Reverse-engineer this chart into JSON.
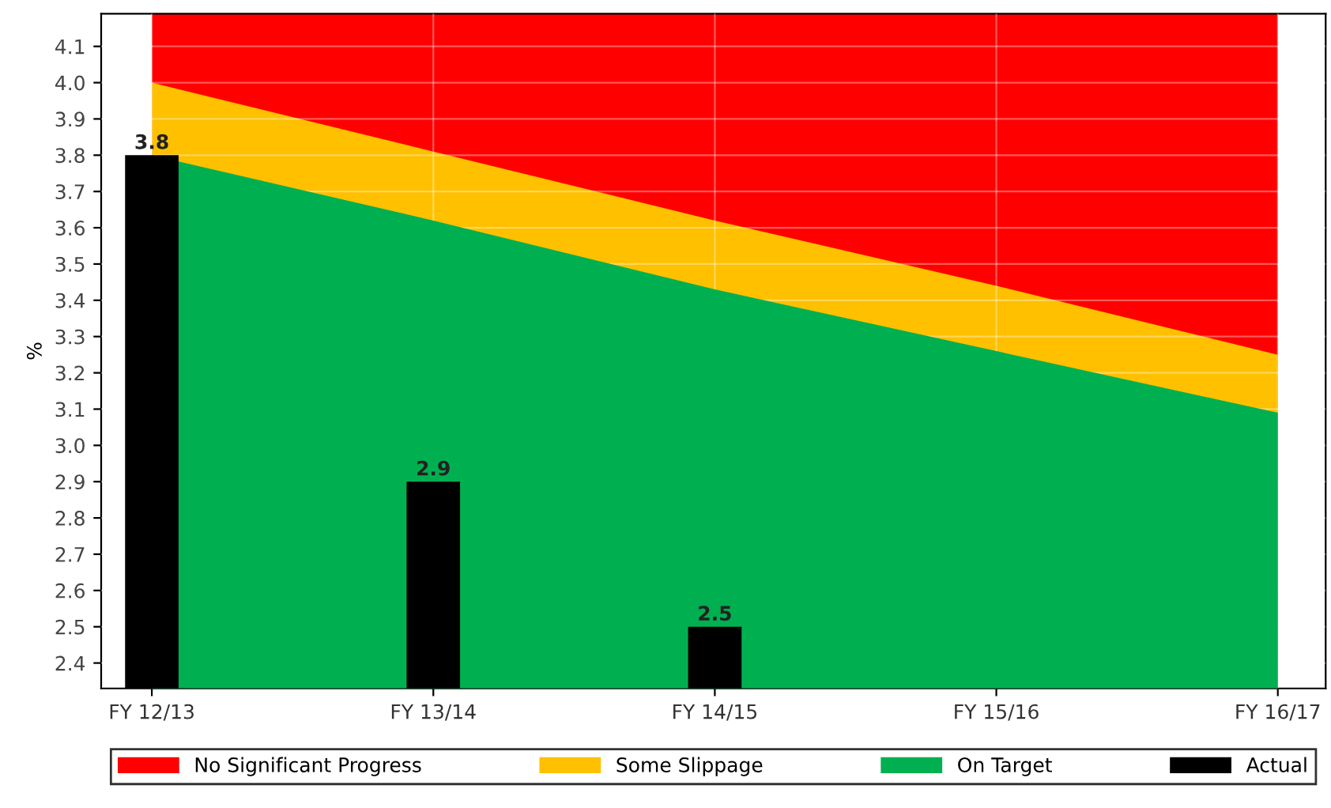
{
  "chart_data": {
    "type": "bar",
    "ylabel": "%",
    "categories": [
      "FY 12/13",
      "FY 13/14",
      "FY 14/15",
      "FY 15/16",
      "FY 16/17"
    ],
    "ylim": [
      2.33,
      4.19
    ],
    "yticks": [
      {
        "value": 2.4,
        "label": "2.4"
      },
      {
        "value": 2.5,
        "label": "2.5"
      },
      {
        "value": 2.6,
        "label": "2.6"
      },
      {
        "value": 2.7,
        "label": "2.7"
      },
      {
        "value": 2.8,
        "label": "2.8"
      },
      {
        "value": 2.9,
        "label": "2.9"
      },
      {
        "value": 3.0,
        "label": "3.0"
      },
      {
        "value": 3.1,
        "label": "3.1"
      },
      {
        "value": 3.2,
        "label": "3.2"
      },
      {
        "value": 3.3,
        "label": "3.3"
      },
      {
        "value": 3.4,
        "label": "3.4"
      },
      {
        "value": 3.5,
        "label": "3.5"
      },
      {
        "value": 3.6,
        "label": "3.6"
      },
      {
        "value": 3.7,
        "label": "3.7"
      },
      {
        "value": 3.8,
        "label": "3.8"
      },
      {
        "value": 3.9,
        "label": "3.9"
      },
      {
        "value": 4.0,
        "label": "4.0"
      },
      {
        "value": 4.1,
        "label": "4.1"
      }
    ],
    "series": [
      {
        "name": "No Significant Progress",
        "type": "area",
        "color": "#ff0000",
        "values": [
          4.19,
          4.19,
          4.19,
          4.19,
          4.19
        ]
      },
      {
        "name": "Some Slippage",
        "type": "area",
        "color": "#ffc000",
        "values": [
          4.0,
          3.81,
          3.62,
          3.44,
          3.25
        ]
      },
      {
        "name": "On Target",
        "type": "area",
        "color": "#00b050",
        "values": [
          3.8,
          3.62,
          3.43,
          3.26,
          3.09
        ]
      },
      {
        "name": "Actual",
        "color": "#000000",
        "values": [
          3.8,
          2.9,
          2.5,
          null,
          null
        ],
        "value_labels": [
          "3.8",
          "2.9",
          "2.5",
          null,
          null
        ]
      }
    ],
    "grid": true,
    "legend": "bottom"
  }
}
